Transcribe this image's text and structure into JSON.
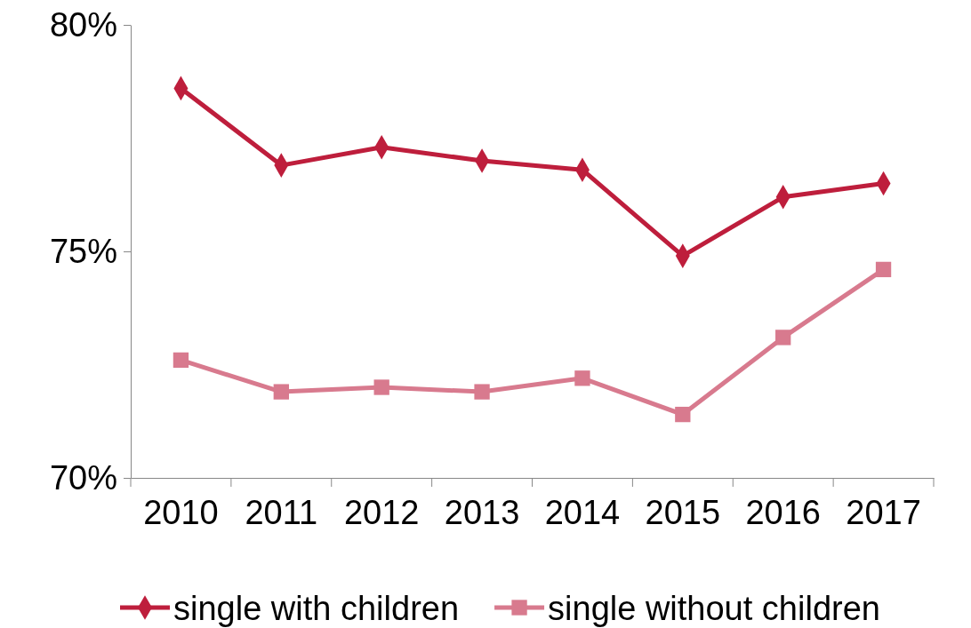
{
  "chart_data": {
    "type": "line",
    "categories": [
      "2010",
      "2011",
      "2012",
      "2013",
      "2014",
      "2015",
      "2016",
      "2017"
    ],
    "series": [
      {
        "name": "single with children",
        "color": "#be1e3c",
        "marker": "diamond",
        "values": [
          78.6,
          76.9,
          77.3,
          77.0,
          76.8,
          74.9,
          76.2,
          76.5
        ]
      },
      {
        "name": "single without children",
        "color": "#d87a8e",
        "marker": "square",
        "values": [
          72.6,
          71.9,
          72.0,
          71.9,
          72.2,
          71.4,
          73.1,
          74.6
        ]
      }
    ],
    "ylim": [
      70,
      80
    ],
    "yticks": [
      {
        "value": 70,
        "label": "70%"
      },
      {
        "value": 75,
        "label": "75%"
      },
      {
        "value": 80,
        "label": "80%"
      }
    ],
    "grid": false,
    "legend": "bottom",
    "line_style": "solid"
  }
}
